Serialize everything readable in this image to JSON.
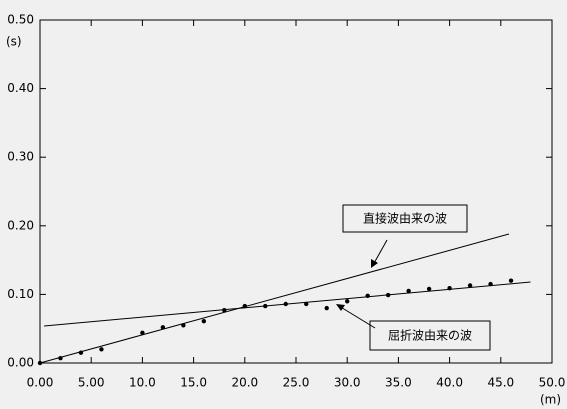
{
  "chart_data": {
    "type": "scatter",
    "y_label": "(s)",
    "x_label": "(m)",
    "x": [
      0,
      2,
      4,
      6,
      10,
      12,
      14,
      16,
      18,
      20,
      22,
      24,
      26,
      28,
      30,
      32,
      34,
      36,
      38,
      40,
      42,
      44,
      46
    ],
    "series": [
      {
        "color": "#000000",
        "values": [
          0,
          0.007,
          0.015,
          0.02,
          0.044,
          0.052,
          0.055,
          0.061,
          0.077,
          0.083,
          0.083,
          0.086,
          0.086,
          0.08,
          0.09,
          0.098,
          0.099,
          0.105,
          0.108,
          0.109,
          0.113,
          0.115,
          0.12
        ]
      }
    ],
    "fit_lines": [
      {
        "x": [
          0,
          45.8
        ],
        "y": [
          0,
          0.188
        ]
      },
      {
        "x": [
          0.4,
          47.9
        ],
        "y": [
          0.054,
          0.118
        ]
      }
    ],
    "annotations": [
      {
        "text": "直接波由来の波"
      },
      {
        "text": "屈折波由来の波"
      }
    ],
    "xlim": [
      0,
      50
    ],
    "ylim": [
      0,
      0.5
    ],
    "xticks": [
      {
        "value": 0,
        "label": "0.00"
      },
      {
        "value": 5,
        "label": "5.00"
      },
      {
        "value": 10,
        "label": "10.0"
      },
      {
        "value": 15,
        "label": "15.0"
      },
      {
        "value": 20,
        "label": "20.0"
      },
      {
        "value": 25,
        "label": "25.0"
      },
      {
        "value": 30,
        "label": "30.0"
      },
      {
        "value": 35,
        "label": "35.0"
      },
      {
        "value": 40,
        "label": "40.0"
      },
      {
        "value": 45,
        "label": "45.0"
      },
      {
        "value": 50,
        "label": "50.0"
      }
    ],
    "yticks": [
      {
        "value": 0,
        "label": "0.00"
      },
      {
        "value": 0.1,
        "label": "0.10"
      },
      {
        "value": 0.2,
        "label": "0.20"
      },
      {
        "value": 0.3,
        "label": "0.30"
      },
      {
        "value": 0.4,
        "label": "0.40"
      },
      {
        "value": 0.5,
        "label": "0.50"
      }
    ]
  }
}
